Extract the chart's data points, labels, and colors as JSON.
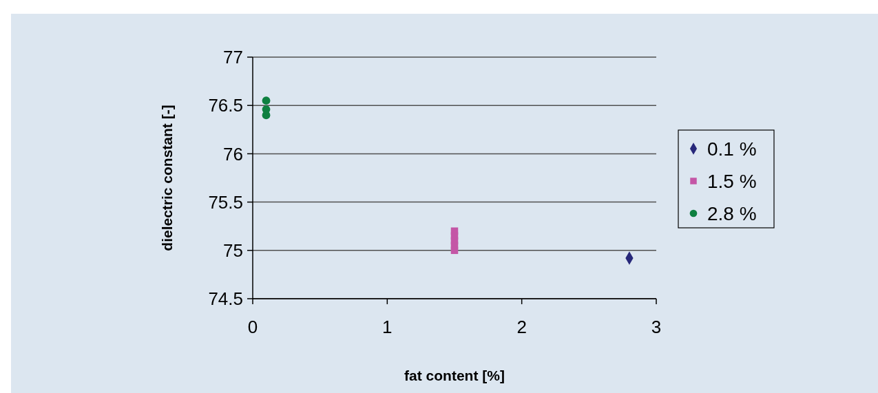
{
  "chart_data": {
    "type": "scatter",
    "xlabel": "fat content [%]",
    "ylabel": "dielectric constant [-]",
    "xlim": [
      0,
      3
    ],
    "xticks": [
      0,
      1,
      2,
      3
    ],
    "ylim": [
      74.5,
      77
    ],
    "yticks": [
      74.5,
      75,
      75.5,
      76,
      76.5,
      77
    ],
    "grid": "y",
    "legend": "right",
    "series": [
      {
        "name": "0.1 %",
        "color": "#27287a",
        "marker": "diamond",
        "x": [
          2.8
        ],
        "values": [
          74.92
        ]
      },
      {
        "name": "1.5 %",
        "color": "#c456a6",
        "marker": "square",
        "x": [
          1.5,
          1.5,
          1.5,
          1.5,
          1.5
        ],
        "values": [
          75.2,
          75.15,
          75.1,
          75.05,
          75.0
        ]
      },
      {
        "name": "2.8 %",
        "color": "#0e8040",
        "marker": "circle",
        "x": [
          0.1,
          0.1,
          0.1
        ],
        "values": [
          76.55,
          76.46,
          76.4
        ]
      }
    ]
  }
}
